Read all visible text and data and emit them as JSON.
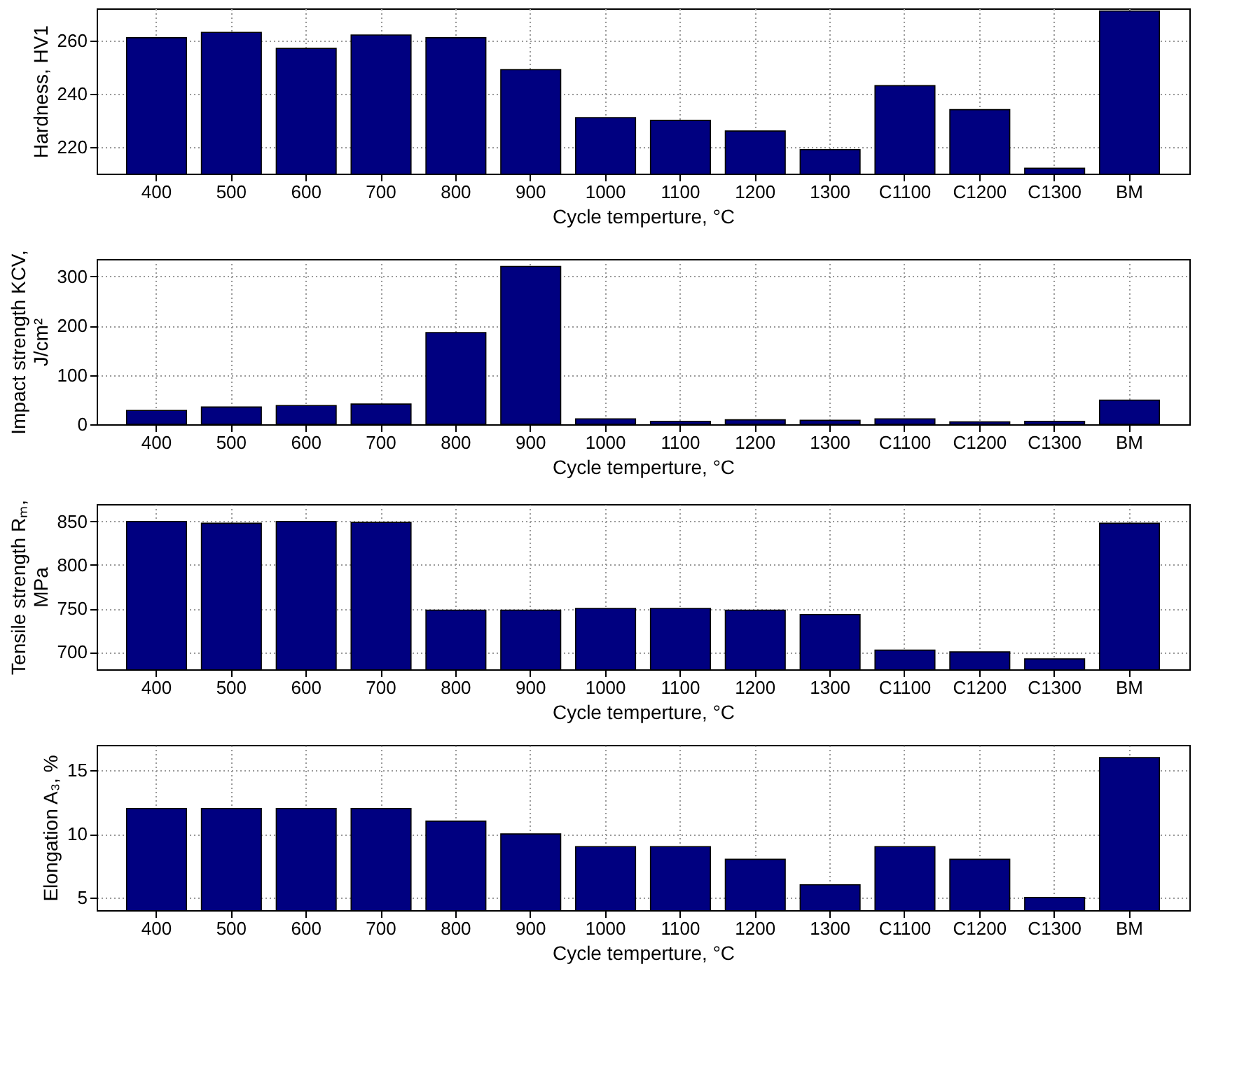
{
  "chart_data": [
    {
      "type": "bar",
      "categories": [
        "400",
        "500",
        "600",
        "700",
        "800",
        "900",
        "1000",
        "1100",
        "1200",
        "1300",
        "C1100",
        "C1200",
        "C1300",
        "BM"
      ],
      "values": [
        261,
        263,
        257,
        262,
        261,
        249,
        231,
        230,
        226,
        219,
        243,
        234,
        212,
        271
      ],
      "color": "#000080",
      "ylim": [
        210,
        272
      ],
      "yticks": [
        220,
        240,
        260
      ],
      "ylabel": "Hardness, HV1",
      "xlabel": "Cycle temperture, °C",
      "grid": true
    },
    {
      "type": "bar",
      "categories": [
        "400",
        "500",
        "600",
        "700",
        "800",
        "900",
        "1000",
        "1100",
        "1200",
        "1300",
        "C1100",
        "C1200",
        "C1300",
        "BM"
      ],
      "values": [
        28,
        35,
        38,
        41,
        186,
        320,
        11,
        6,
        9,
        8,
        11,
        5,
        6,
        49
      ],
      "color": "#000080",
      "ylim": [
        0,
        335
      ],
      "yticks": [
        0,
        100,
        200,
        300
      ],
      "ylabel": "Impact strength KCV, J/cm²",
      "xlabel": "Cycle temperture, °C",
      "grid": true
    },
    {
      "type": "bar",
      "categories": [
        "400",
        "500",
        "600",
        "700",
        "800",
        "900",
        "1000",
        "1100",
        "1200",
        "1300",
        "C1100",
        "C1200",
        "C1300",
        "BM"
      ],
      "values": [
        850,
        848,
        850,
        849,
        748,
        748,
        750,
        750,
        748,
        743,
        702,
        700,
        692,
        848
      ],
      "color": "#000080",
      "ylim": [
        680,
        870
      ],
      "yticks": [
        700,
        750,
        800,
        850
      ],
      "ylabel": "Tensile strength Rₘ, MPa",
      "xlabel": "Cycle temperture, °C",
      "grid": true
    },
    {
      "type": "bar",
      "categories": [
        "400",
        "500",
        "600",
        "700",
        "800",
        "900",
        "1000",
        "1100",
        "1200",
        "1300",
        "C1100",
        "C1200",
        "C1300",
        "BM"
      ],
      "values": [
        12,
        12,
        12,
        12,
        11,
        10,
        9,
        9,
        8,
        6,
        9,
        8,
        5,
        16
      ],
      "color": "#000080",
      "ylim": [
        4,
        17
      ],
      "yticks": [
        5,
        10,
        15
      ],
      "ylabel": "Elongation A₃, %",
      "xlabel": "Cycle temperture, °C",
      "grid": true
    }
  ]
}
